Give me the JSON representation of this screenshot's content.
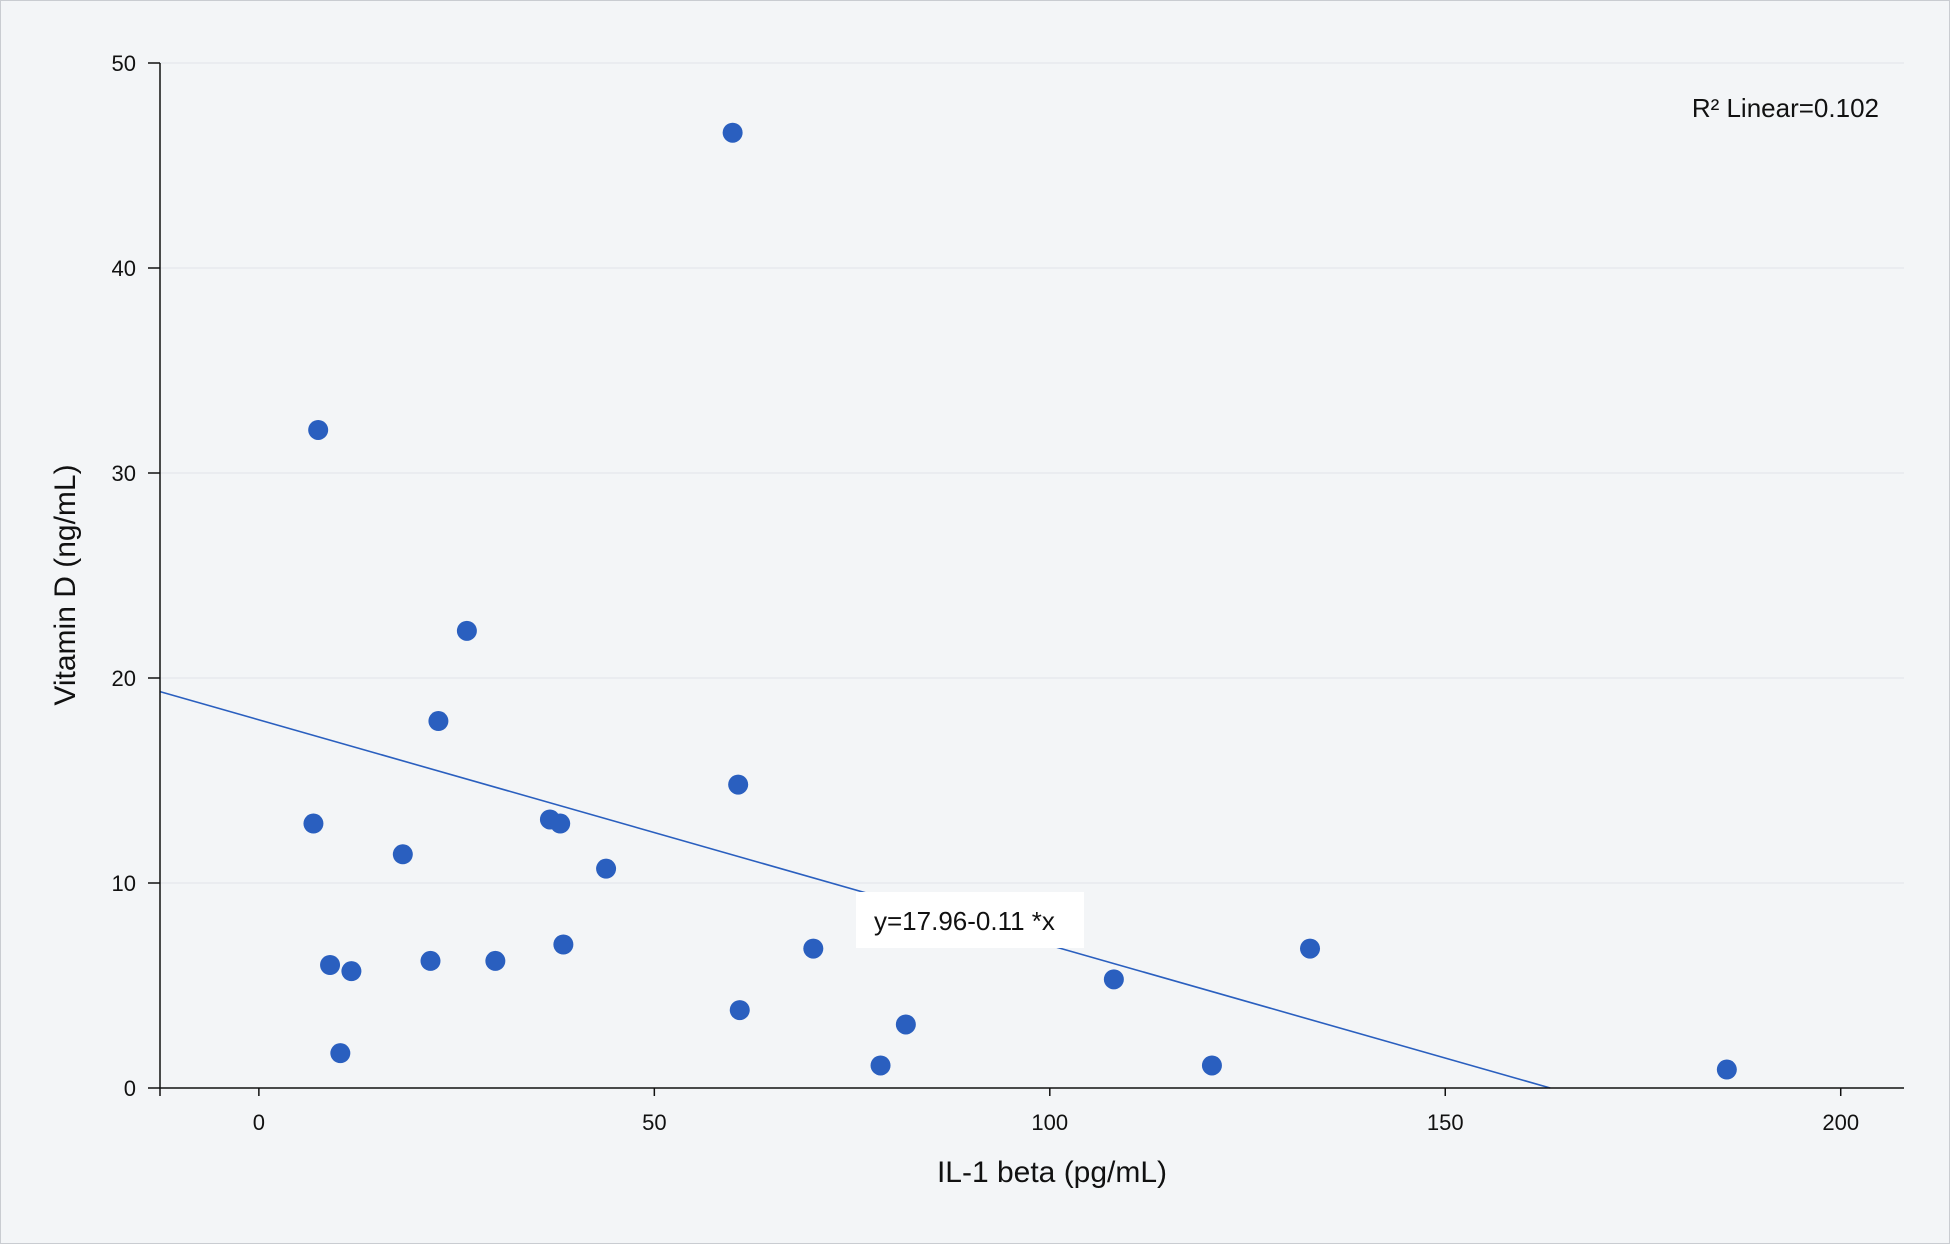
{
  "chart_data": {
    "type": "scatter",
    "title": "",
    "xlabel": "IL-1 beta (pg/mL)",
    "ylabel": "Vitamin D (ng/mL)",
    "xlim": [
      -12.5,
      208
    ],
    "ylim": [
      0,
      50
    ],
    "x_ticks": [
      0,
      50,
      100,
      150,
      200
    ],
    "y_ticks": [
      0,
      10,
      20,
      30,
      40,
      50
    ],
    "grid": "horizontal",
    "colors": {
      "point": "#2a5fbf",
      "line": "#2a5fbf",
      "grid": "#e2e4e8",
      "axis": "#111111"
    },
    "points": [
      {
        "x": 7.5,
        "y": 32.1
      },
      {
        "x": 6.9,
        "y": 12.9
      },
      {
        "x": 9.0,
        "y": 6.0
      },
      {
        "x": 11.7,
        "y": 5.7
      },
      {
        "x": 10.3,
        "y": 1.7
      },
      {
        "x": 18.2,
        "y": 11.4
      },
      {
        "x": 21.7,
        "y": 6.2
      },
      {
        "x": 22.7,
        "y": 17.9
      },
      {
        "x": 26.3,
        "y": 22.3
      },
      {
        "x": 29.9,
        "y": 6.2
      },
      {
        "x": 36.8,
        "y": 13.1
      },
      {
        "x": 38.1,
        "y": 12.9
      },
      {
        "x": 38.5,
        "y": 7.0
      },
      {
        "x": 43.9,
        "y": 10.7
      },
      {
        "x": 59.9,
        "y": 46.6
      },
      {
        "x": 60.6,
        "y": 14.8
      },
      {
        "x": 60.8,
        "y": 3.8
      },
      {
        "x": 70.1,
        "y": 6.8
      },
      {
        "x": 78.6,
        "y": 1.1
      },
      {
        "x": 81.8,
        "y": 3.1
      },
      {
        "x": 108.1,
        "y": 5.3
      },
      {
        "x": 120.5,
        "y": 1.1
      },
      {
        "x": 132.9,
        "y": 6.8
      },
      {
        "x": 185.6,
        "y": 0.9
      }
    ],
    "fit_line": {
      "intercept": 17.96,
      "slope": -0.11
    },
    "annotations": {
      "r2": "R² Linear=0.102",
      "equation": "y=17.96-0.11 *x"
    }
  }
}
